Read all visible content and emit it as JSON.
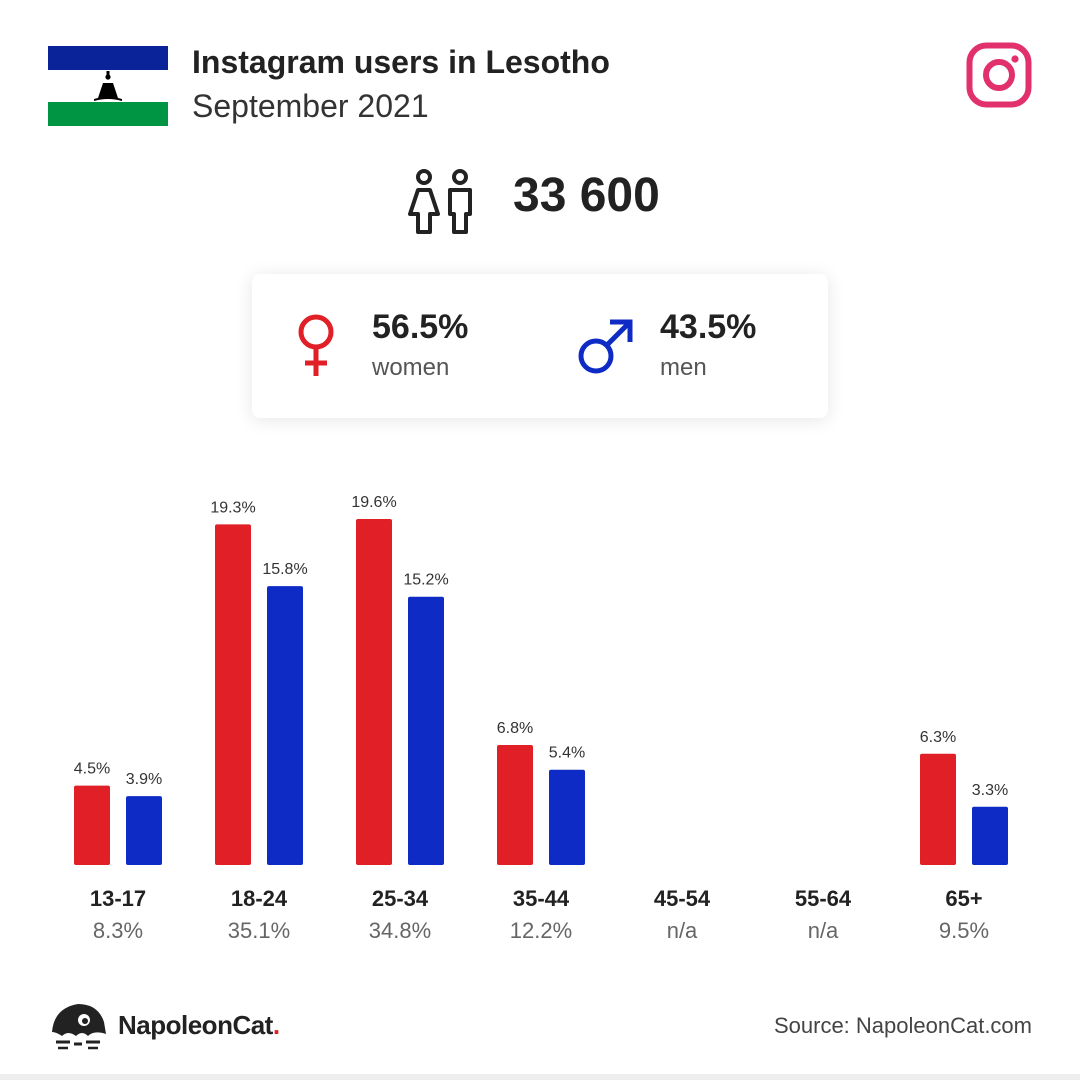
{
  "header": {
    "title": "Instagram users in Lesotho",
    "subtitle": "September 2021",
    "flag_icon": "lesotho-flag-icon",
    "brand_icon": "instagram-icon"
  },
  "summary": {
    "total": "33 600",
    "women_pct": "56.5%",
    "women_label": "women",
    "men_pct": "43.5%",
    "men_label": "men"
  },
  "colors": {
    "women": "#e01f26",
    "men": "#0f2bc5",
    "instagram": "#e1306c",
    "flag_blue": "#0a2399",
    "flag_green": "#009543"
  },
  "chart_data": {
    "type": "bar",
    "categories": [
      "13-17",
      "18-24",
      "25-34",
      "35-44",
      "45-54",
      "55-64",
      "65+"
    ],
    "category_totals": [
      "8.3%",
      "35.1%",
      "34.8%",
      "12.2%",
      "n/a",
      "n/a",
      "9.5%"
    ],
    "series": [
      {
        "values": [
          4.5,
          19.3,
          19.6,
          6.8,
          null,
          null,
          6.3
        ]
      },
      {
        "values": [
          3.9,
          15.8,
          15.2,
          5.4,
          null,
          null,
          3.3
        ]
      }
    ],
    "value_labels": [
      [
        "4.5%",
        "19.3%",
        "19.6%",
        "6.8%",
        "",
        "",
        "6.3%"
      ],
      [
        "3.9%",
        "15.8%",
        "15.2%",
        "5.4%",
        "",
        "",
        "3.3%"
      ]
    ],
    "ylim": [
      0,
      20
    ],
    "grid": false,
    "legend": "none"
  },
  "footer": {
    "brand": "NapoleonCat",
    "brand_dot": ".",
    "source": "Source: NapoleonCat.com"
  }
}
